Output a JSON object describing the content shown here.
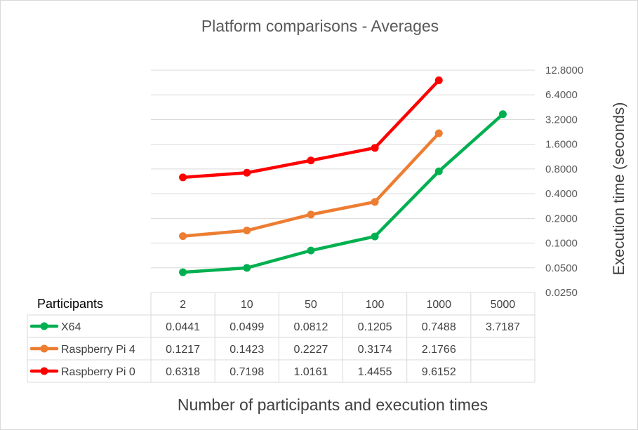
{
  "chart_data": {
    "type": "line",
    "title": "Platform comparisons - Averages",
    "xlabel": "Number of participants and execution times",
    "ylabel": "Execution time (seconds)",
    "y_scale": "log2",
    "ylim": [
      0.025,
      12.8
    ],
    "yticks": [
      "12.8000",
      "6.4000",
      "3.2000",
      "1.6000",
      "0.8000",
      "0.4000",
      "0.2000",
      "0.1000",
      "0.0500",
      "0.0250"
    ],
    "ytick_values": [
      12.8,
      6.4,
      3.2,
      1.6,
      0.8,
      0.4,
      0.2,
      0.1,
      0.05,
      0.025
    ],
    "grid": true,
    "legend_placement": "data table",
    "table_corner_label": "Participants",
    "categories": [
      "2",
      "10",
      "50",
      "100",
      "1000",
      "5000"
    ],
    "series": [
      {
        "name": "X64",
        "color": "#00b050",
        "values": [
          0.0441,
          0.0499,
          0.0812,
          0.1205,
          0.7488,
          3.7187
        ],
        "labels": [
          "0.0441",
          "0.0499",
          "0.0812",
          "0.1205",
          "0.7488",
          "3.7187"
        ]
      },
      {
        "name": "Raspberry Pi 4",
        "color": "#ed7d31",
        "values": [
          0.1217,
          0.1423,
          0.2227,
          0.3174,
          2.1766,
          null
        ],
        "labels": [
          "0.1217",
          "0.1423",
          "0.2227",
          "0.3174",
          "2.1766",
          ""
        ]
      },
      {
        "name": "Raspberry Pi 0",
        "color": "#ff0000",
        "values": [
          0.6318,
          0.7198,
          1.0161,
          1.4455,
          9.6152,
          null
        ],
        "labels": [
          "0.6318",
          "0.7198",
          "1.0161",
          "1.4455",
          "9.6152",
          ""
        ]
      }
    ]
  }
}
